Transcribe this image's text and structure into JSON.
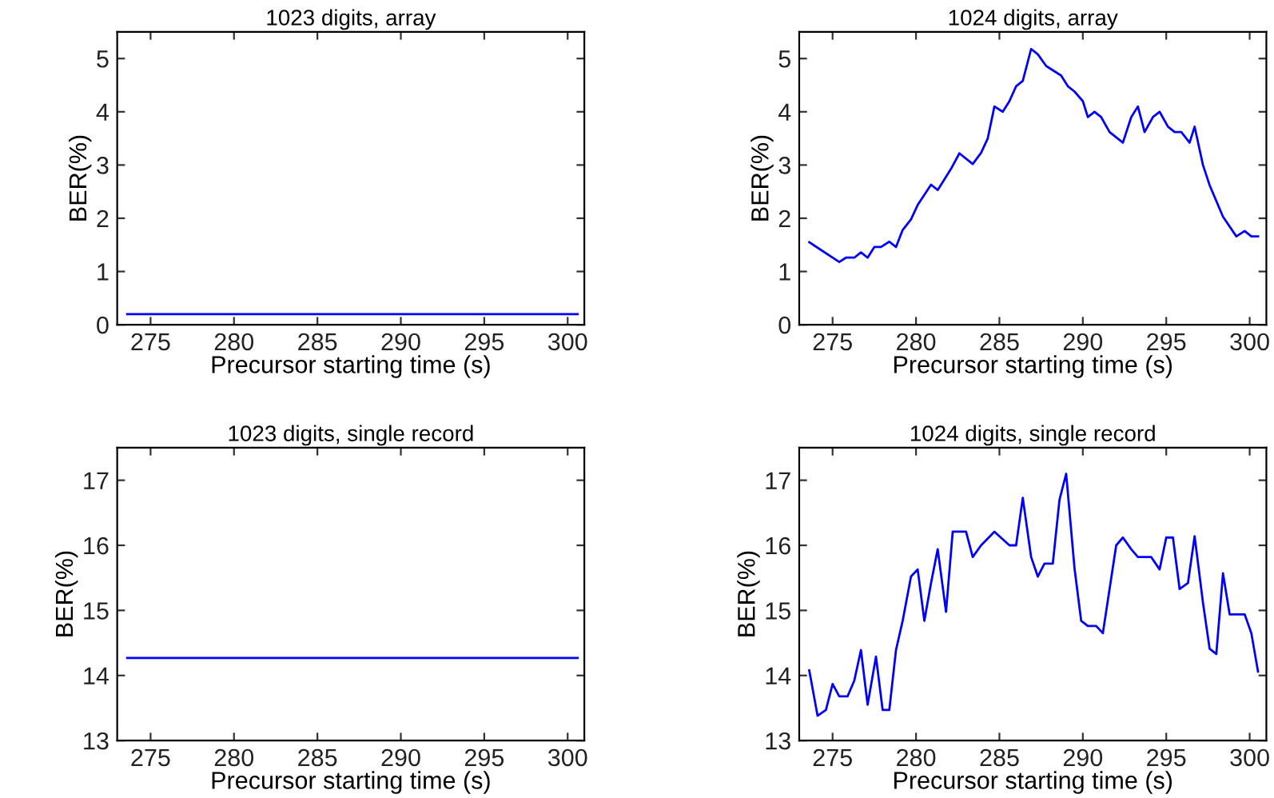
{
  "chart_data": [
    {
      "type": "line",
      "title": "1023 digits, array",
      "xlabel": "Precursor starting time (s)",
      "ylabel": "BER(%)",
      "xlim": [
        273,
        301
      ],
      "xticks": [
        275,
        280,
        285,
        290,
        295,
        300
      ],
      "ylim": [
        0,
        5.5
      ],
      "yticks": [
        0,
        1,
        2,
        3,
        4,
        5
      ],
      "grid": false,
      "legend": false,
      "series": [
        {
          "color": "#0000ff",
          "x": [
            273.6,
            300.6
          ],
          "values": [
            0.2,
            0.2
          ]
        }
      ]
    },
    {
      "type": "line",
      "title": "1024 digits, array",
      "xlabel": "Precursor starting time (s)",
      "ylabel": "BER(%)",
      "xlim": [
        273,
        301
      ],
      "xticks": [
        275,
        280,
        285,
        290,
        295,
        300
      ],
      "ylim": [
        0,
        5.5
      ],
      "yticks": [
        0,
        1,
        2,
        3,
        4,
        5
      ],
      "grid": false,
      "legend": false,
      "series": [
        {
          "color": "#0000ff",
          "x": [
            273.6,
            275.4,
            275.8,
            276.3,
            276.7,
            277.1,
            277.5,
            277.9,
            278.4,
            278.8,
            279.2,
            279.7,
            280.1,
            280.9,
            281.3,
            282.1,
            282.6,
            283.4,
            283.9,
            284.3,
            284.7,
            285.2,
            285.6,
            286.0,
            286.4,
            286.9,
            287.3,
            287.8,
            288.7,
            289.1,
            289.5,
            290.0,
            290.3,
            290.7,
            291.1,
            291.6,
            292.4,
            292.9,
            293.3,
            293.7,
            294.2,
            294.6,
            295.1,
            295.5,
            295.9,
            296.4,
            296.7,
            297.2,
            297.6,
            298.4,
            299.2,
            299.7,
            300.1,
            300.5
          ],
          "values": [
            1.55,
            1.18,
            1.26,
            1.26,
            1.36,
            1.26,
            1.46,
            1.46,
            1.56,
            1.46,
            1.78,
            1.98,
            2.25,
            2.63,
            2.53,
            2.93,
            3.22,
            3.02,
            3.23,
            3.5,
            4.1,
            4.0,
            4.2,
            4.48,
            4.58,
            5.18,
            5.08,
            4.86,
            4.68,
            4.48,
            4.38,
            4.2,
            3.9,
            4.0,
            3.9,
            3.62,
            3.42,
            3.9,
            4.1,
            3.62,
            3.9,
            4.0,
            3.72,
            3.62,
            3.62,
            3.42,
            3.72,
            3.0,
            2.62,
            2.03,
            1.66,
            1.76,
            1.66,
            1.66
          ]
        }
      ]
    },
    {
      "type": "line",
      "title": "1023 digits, single record",
      "xlabel": "Precursor starting time (s)",
      "ylabel": "BER(%)",
      "xlim": [
        273,
        301
      ],
      "xticks": [
        275,
        280,
        285,
        290,
        295,
        300
      ],
      "ylim": [
        13,
        17.5
      ],
      "yticks": [
        13,
        14,
        15,
        16,
        17
      ],
      "grid": false,
      "legend": false,
      "series": [
        {
          "color": "#0000ff",
          "x": [
            273.6,
            300.6
          ],
          "values": [
            14.27,
            14.27
          ]
        }
      ]
    },
    {
      "type": "line",
      "title": "1024 digits, single record",
      "xlabel": "Precursor starting time (s)",
      "ylabel": "BER(%)",
      "xlim": [
        273,
        301
      ],
      "xticks": [
        275,
        280,
        285,
        290,
        295,
        300
      ],
      "ylim": [
        13,
        17.5
      ],
      "yticks": [
        13,
        14,
        15,
        16,
        17
      ],
      "grid": false,
      "legend": false,
      "series": [
        {
          "color": "#0000ff",
          "x": [
            273.6,
            274.1,
            274.6,
            275.0,
            275.4,
            275.9,
            276.3,
            276.7,
            277.1,
            277.6,
            278.0,
            278.4,
            278.8,
            279.2,
            279.7,
            280.1,
            280.5,
            280.9,
            281.3,
            281.8,
            282.2,
            283.0,
            283.4,
            283.9,
            284.7,
            285.6,
            286.0,
            286.4,
            286.9,
            287.3,
            287.7,
            288.2,
            288.6,
            289.0,
            289.5,
            289.9,
            290.3,
            290.8,
            291.2,
            292.0,
            292.4,
            292.9,
            293.3,
            294.1,
            294.6,
            295.0,
            295.4,
            295.8,
            296.3,
            296.7,
            297.2,
            297.6,
            298.0,
            298.4,
            298.8,
            299.7,
            300.1,
            300.5
          ],
          "values": [
            14.08,
            13.38,
            13.47,
            13.87,
            13.68,
            13.68,
            13.92,
            14.39,
            13.55,
            14.29,
            13.47,
            13.47,
            14.39,
            14.84,
            15.52,
            15.63,
            14.84,
            15.42,
            15.94,
            14.98,
            16.21,
            16.21,
            15.82,
            16.0,
            16.21,
            16.0,
            16.0,
            16.73,
            15.82,
            15.52,
            15.72,
            15.72,
            16.7,
            17.1,
            15.65,
            14.84,
            14.76,
            14.76,
            14.65,
            16.0,
            16.12,
            15.94,
            15.82,
            15.82,
            15.63,
            16.12,
            16.12,
            15.33,
            15.42,
            16.14,
            15.12,
            14.41,
            14.33,
            15.57,
            14.94,
            14.94,
            14.65,
            14.06
          ]
        }
      ]
    }
  ]
}
